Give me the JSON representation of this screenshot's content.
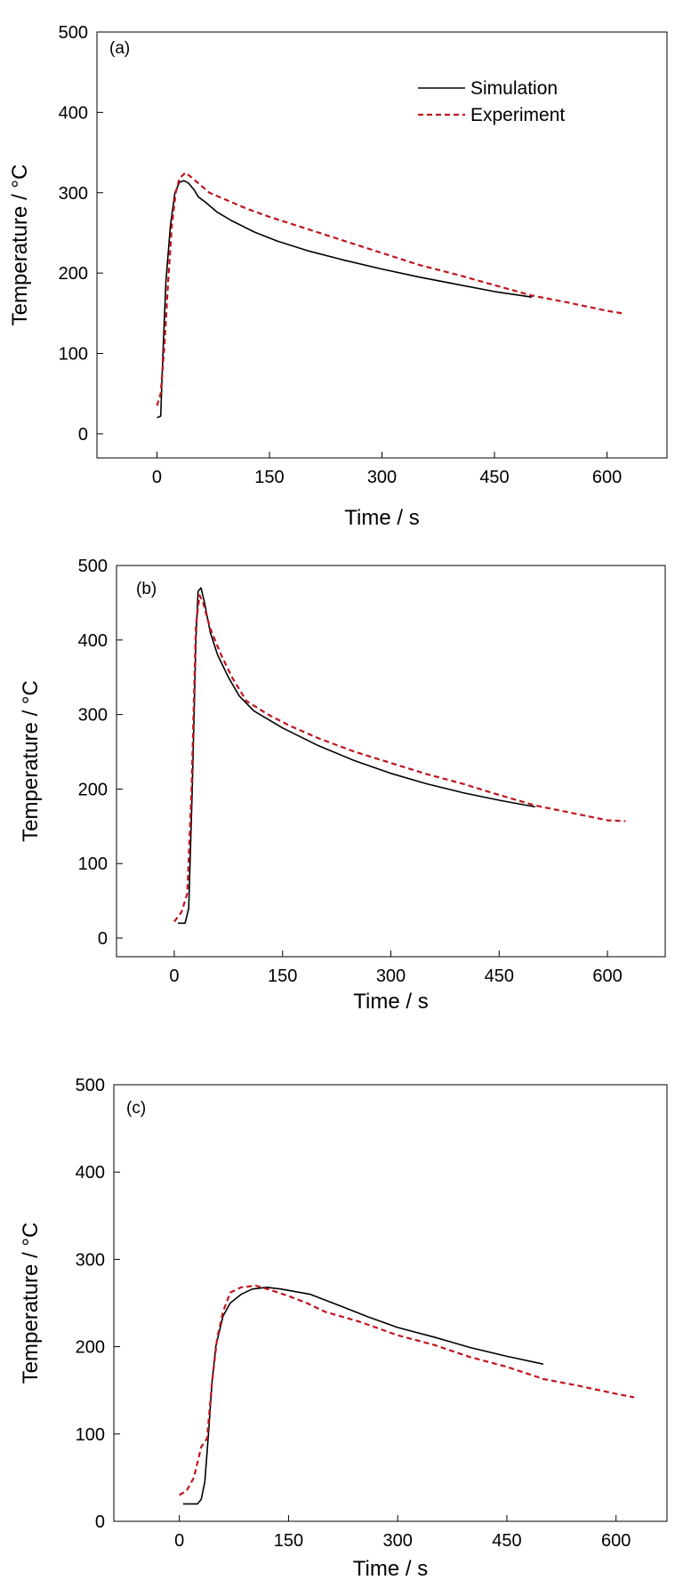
{
  "chart_data": [
    {
      "type": "line",
      "panel_label": "(a)",
      "xlabel": "Time / s",
      "ylabel": "Temperature / °C",
      "xlim": [
        -80,
        680
      ],
      "ylim": [
        -30,
        500
      ],
      "xticks": [
        0,
        150,
        300,
        450,
        600
      ],
      "yticks": [
        0,
        100,
        200,
        300,
        400,
        500
      ],
      "grid": false,
      "legend": "top-right",
      "series": [
        {
          "name": "Simulation",
          "color": "#000000",
          "style": "solid",
          "points": [
            [
              0,
              20
            ],
            [
              5,
              22
            ],
            [
              8,
              100
            ],
            [
              12,
              190
            ],
            [
              18,
              260
            ],
            [
              24,
              300
            ],
            [
              30,
              313
            ],
            [
              36,
              315
            ],
            [
              42,
              312
            ],
            [
              50,
              303
            ],
            [
              55,
              295
            ],
            [
              65,
              288
            ],
            [
              80,
              276
            ],
            [
              100,
              265
            ],
            [
              130,
              251
            ],
            [
              160,
              240
            ],
            [
              200,
              228
            ],
            [
              250,
              216
            ],
            [
              300,
              205
            ],
            [
              350,
              195
            ],
            [
              400,
              186
            ],
            [
              450,
              177
            ],
            [
              500,
              170
            ]
          ]
        },
        {
          "name": "Experiment",
          "color": "#c0141c",
          "style": "dashed",
          "points": [
            [
              0,
              35
            ],
            [
              5,
              50
            ],
            [
              10,
              110
            ],
            [
              15,
              190
            ],
            [
              20,
              260
            ],
            [
              25,
              300
            ],
            [
              30,
              318
            ],
            [
              38,
              325
            ],
            [
              45,
              320
            ],
            [
              55,
              312
            ],
            [
              70,
              300
            ],
            [
              90,
              292
            ],
            [
              120,
              280
            ],
            [
              150,
              270
            ],
            [
              200,
              255
            ],
            [
              250,
              240
            ],
            [
              300,
              225
            ],
            [
              350,
              210
            ],
            [
              400,
              198
            ],
            [
              450,
              185
            ],
            [
              500,
              172
            ],
            [
              550,
              163
            ],
            [
              600,
              153
            ],
            [
              620,
              150
            ]
          ]
        }
      ]
    },
    {
      "type": "line",
      "panel_label": "(b)",
      "xlabel": "Time / s",
      "ylabel": "Temperature / °C",
      "xlim": [
        -80,
        680
      ],
      "ylim": [
        -25,
        500
      ],
      "xticks": [
        0,
        150,
        300,
        450,
        600
      ],
      "yticks": [
        0,
        100,
        200,
        300,
        400,
        500
      ],
      "grid": false,
      "legend": "",
      "series": [
        {
          "name": "",
          "color": "#000000",
          "style": "solid",
          "points": [
            [
              5,
              20
            ],
            [
              15,
              20
            ],
            [
              20,
              40
            ],
            [
              25,
              200
            ],
            [
              30,
              400
            ],
            [
              33,
              465
            ],
            [
              37,
              470
            ],
            [
              42,
              450
            ],
            [
              50,
              410
            ],
            [
              60,
              380
            ],
            [
              75,
              350
            ],
            [
              90,
              325
            ],
            [
              110,
              305
            ],
            [
              150,
              282
            ],
            [
              200,
              258
            ],
            [
              250,
              238
            ],
            [
              300,
              221
            ],
            [
              350,
              207
            ],
            [
              400,
              195
            ],
            [
              450,
              185
            ],
            [
              500,
              176
            ]
          ]
        },
        {
          "name": "",
          "color": "#c0141c",
          "style": "dashed",
          "points": [
            [
              0,
              22
            ],
            [
              10,
              35
            ],
            [
              18,
              60
            ],
            [
              24,
              200
            ],
            [
              30,
              420
            ],
            [
              35,
              460
            ],
            [
              40,
              450
            ],
            [
              50,
              415
            ],
            [
              65,
              380
            ],
            [
              80,
              350
            ],
            [
              100,
              318
            ],
            [
              130,
              300
            ],
            [
              160,
              285
            ],
            [
              200,
              268
            ],
            [
              250,
              250
            ],
            [
              300,
              235
            ],
            [
              350,
              220
            ],
            [
              400,
              207
            ],
            [
              450,
              192
            ],
            [
              500,
              178
            ],
            [
              550,
              168
            ],
            [
              600,
              158
            ],
            [
              625,
              157
            ]
          ]
        }
      ]
    },
    {
      "type": "line",
      "panel_label": "(c)",
      "xlabel": "Time / s",
      "ylabel": "Temperature / °C",
      "xlim": [
        -90,
        670
      ],
      "ylim": [
        0,
        500
      ],
      "xticks": [
        0,
        150,
        300,
        450,
        600
      ],
      "yticks": [
        0,
        100,
        200,
        300,
        400,
        500
      ],
      "grid": false,
      "legend": "",
      "series": [
        {
          "name": "",
          "color": "#000000",
          "style": "solid",
          "points": [
            [
              5,
              20
            ],
            [
              25,
              20
            ],
            [
              30,
              25
            ],
            [
              35,
              45
            ],
            [
              40,
              100
            ],
            [
              45,
              160
            ],
            [
              50,
              200
            ],
            [
              60,
              235
            ],
            [
              70,
              250
            ],
            [
              85,
              260
            ],
            [
              100,
              266
            ],
            [
              120,
              268
            ],
            [
              140,
              266
            ],
            [
              180,
              260
            ],
            [
              220,
              247
            ],
            [
              260,
              234
            ],
            [
              300,
              222
            ],
            [
              350,
              211
            ],
            [
              400,
              199
            ],
            [
              450,
              189
            ],
            [
              500,
              180
            ]
          ]
        },
        {
          "name": "",
          "color": "#c0141c",
          "style": "dashed",
          "points": [
            [
              0,
              30
            ],
            [
              10,
              35
            ],
            [
              20,
              50
            ],
            [
              30,
              85
            ],
            [
              38,
              95
            ],
            [
              45,
              160
            ],
            [
              52,
              210
            ],
            [
              60,
              240
            ],
            [
              70,
              262
            ],
            [
              85,
              268
            ],
            [
              105,
              270
            ],
            [
              125,
              265
            ],
            [
              150,
              258
            ],
            [
              175,
              250
            ],
            [
              200,
              240
            ],
            [
              250,
              228
            ],
            [
              300,
              213
            ],
            [
              350,
              202
            ],
            [
              400,
              188
            ],
            [
              450,
              177
            ],
            [
              500,
              163
            ],
            [
              550,
              155
            ],
            [
              600,
              146
            ],
            [
              625,
              142
            ]
          ]
        }
      ]
    }
  ]
}
